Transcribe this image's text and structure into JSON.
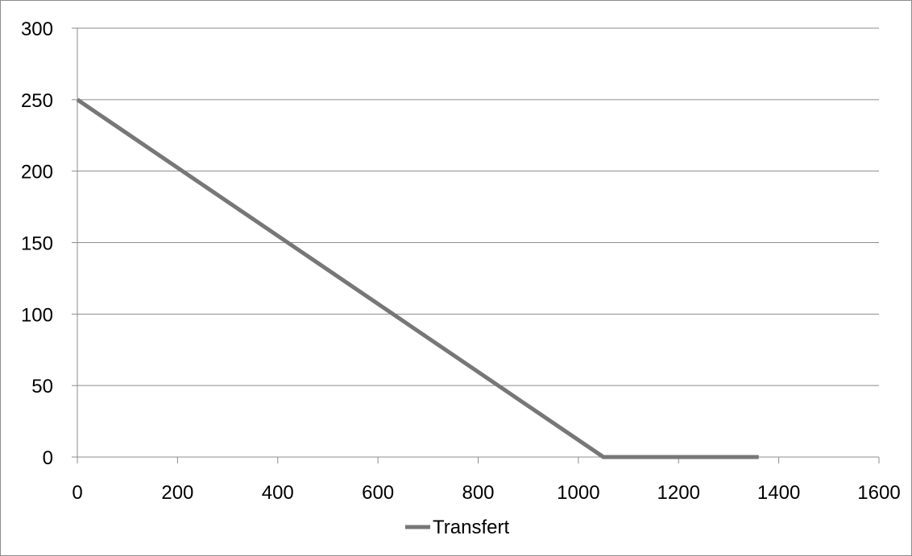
{
  "chart_data": {
    "type": "line",
    "title": "",
    "xlabel": "",
    "ylabel": "",
    "xlim": [
      0,
      1600
    ],
    "ylim": [
      0,
      300
    ],
    "x_ticks": [
      0,
      200,
      400,
      600,
      800,
      1000,
      1200,
      1400,
      1600
    ],
    "y_ticks": [
      0,
      50,
      100,
      150,
      200,
      250,
      300
    ],
    "grid": {
      "horizontal": true,
      "vertical": false
    },
    "legend_position": "bottom",
    "series": [
      {
        "name": "Transfert",
        "color": "#777777",
        "x": [
          0,
          1050,
          1360
        ],
        "y": [
          250,
          0,
          0
        ]
      }
    ]
  }
}
